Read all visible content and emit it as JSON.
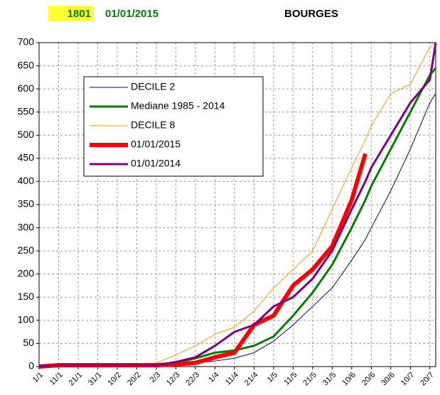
{
  "chart_data": {
    "type": "line",
    "code": "1801",
    "date": "01/01/2015",
    "title": "BOURGES",
    "x": [
      0,
      10,
      20,
      30,
      40,
      50,
      60,
      70,
      80,
      90,
      100,
      110,
      120,
      130,
      140,
      150,
      160,
      167,
      170,
      180,
      190,
      200,
      203
    ],
    "xlim": [
      0,
      203
    ],
    "xticks": [
      {
        "value": 0,
        "label": "1/1"
      },
      {
        "value": 10,
        "label": "11/1"
      },
      {
        "value": 20,
        "label": "21/1"
      },
      {
        "value": 30,
        "label": "31/1"
      },
      {
        "value": 40,
        "label": "10/2"
      },
      {
        "value": 50,
        "label": "20/2"
      },
      {
        "value": 60,
        "label": "2/3"
      },
      {
        "value": 70,
        "label": "12/3"
      },
      {
        "value": 80,
        "label": "22/3"
      },
      {
        "value": 90,
        "label": "1/4"
      },
      {
        "value": 100,
        "label": "11/4"
      },
      {
        "value": 110,
        "label": "21/4"
      },
      {
        "value": 120,
        "label": "1/5"
      },
      {
        "value": 130,
        "label": "11/5"
      },
      {
        "value": 140,
        "label": "21/5"
      },
      {
        "value": 150,
        "label": "31/5"
      },
      {
        "value": 160,
        "label": "10/6"
      },
      {
        "value": 170,
        "label": "20/6"
      },
      {
        "value": 180,
        "label": "30/6"
      },
      {
        "value": 190,
        "label": "10/7"
      },
      {
        "value": 200,
        "label": "20/7"
      }
    ],
    "ylim": [
      0,
      700
    ],
    "yticks": [
      0,
      50,
      100,
      150,
      200,
      250,
      300,
      350,
      400,
      450,
      500,
      550,
      600,
      650,
      700
    ],
    "grid": true,
    "series": [
      {
        "name": "DECILE 2",
        "color": "#000080",
        "width": 1,
        "values": [
          0,
          3,
          3,
          3,
          3,
          3,
          3,
          5,
          8,
          12,
          18,
          30,
          55,
          90,
          130,
          170,
          230,
          275,
          300,
          380,
          470,
          570,
          590
        ]
      },
      {
        "name": "Mediane 1985 - 2014",
        "color": "#008000",
        "width": 3,
        "values": [
          0,
          3,
          3,
          3,
          3,
          3,
          3,
          8,
          18,
          30,
          35,
          45,
          65,
          110,
          160,
          220,
          300,
          360,
          390,
          470,
          550,
          630,
          645
        ]
      },
      {
        "name": "DECILE 8",
        "color": "#ff9900",
        "width": 1,
        "values": [
          0,
          3,
          3,
          3,
          3,
          3,
          8,
          25,
          45,
          70,
          85,
          120,
          170,
          210,
          250,
          340,
          430,
          490,
          520,
          590,
          610,
          690,
          700
        ]
      },
      {
        "name": "01/01/2015",
        "color": "#ff0000",
        "width": 6,
        "values": [
          0,
          3,
          3,
          3,
          3,
          3,
          3,
          5,
          8,
          20,
          30,
          90,
          110,
          175,
          210,
          260,
          360,
          460,
          null,
          null,
          null,
          null,
          null
        ]
      },
      {
        "name": "01/01/2014",
        "color": "#800080",
        "width": 3,
        "values": [
          0,
          3,
          3,
          3,
          3,
          3,
          3,
          10,
          20,
          45,
          75,
          90,
          130,
          150,
          190,
          250,
          340,
          400,
          430,
          500,
          570,
          620,
          700
        ]
      }
    ]
  }
}
